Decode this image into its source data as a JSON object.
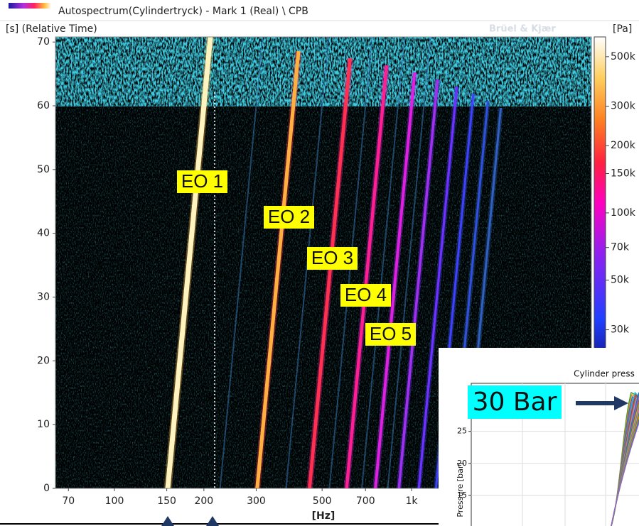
{
  "chart_data": [
    {
      "type": "heatmap",
      "title": "Autospectrum(Cylindertryck) - Mark 1 (Real) \\ CPB",
      "y_label": "[s] (Relative Time)",
      "x_label": "[Hz]",
      "colorbar_label": "[Pa]",
      "watermark": "Brüel & Kjær",
      "log_x": true,
      "xlim": [
        63.3,
        4030
      ],
      "xticks": [
        70,
        100,
        150,
        200,
        300,
        500,
        700,
        {
          "value": 1000,
          "label": "1k"
        }
      ],
      "ylim": [
        0,
        70.8
      ],
      "yticks": [
        0,
        10,
        20,
        30,
        40,
        50,
        60,
        70
      ],
      "colorbar": {
        "log": true,
        "zlim": [
          20000,
          613000
        ],
        "ticks": [
          {
            "value": 30000,
            "label": "30k"
          },
          {
            "value": 50000,
            "label": "50k"
          },
          {
            "value": 70000,
            "label": "70k"
          },
          {
            "value": 100000,
            "label": "100k"
          },
          {
            "value": 150000,
            "label": "150k"
          },
          {
            "value": 200000,
            "label": "200k"
          },
          {
            "value": 300000,
            "label": "300k"
          },
          {
            "value": 500000,
            "label": "500k"
          }
        ]
      },
      "annotations": [
        "EO 1",
        "EO 2",
        "EO 3",
        "EO 4",
        "EO 5"
      ]
    },
    {
      "type": "line",
      "title": "Cylinder press",
      "y_label": "Pressure [bar]",
      "ylim": [
        10,
        32.5
      ],
      "yticks": [
        15,
        20,
        25
      ],
      "grid": true,
      "annotation": "30 Bar"
    }
  ]
}
